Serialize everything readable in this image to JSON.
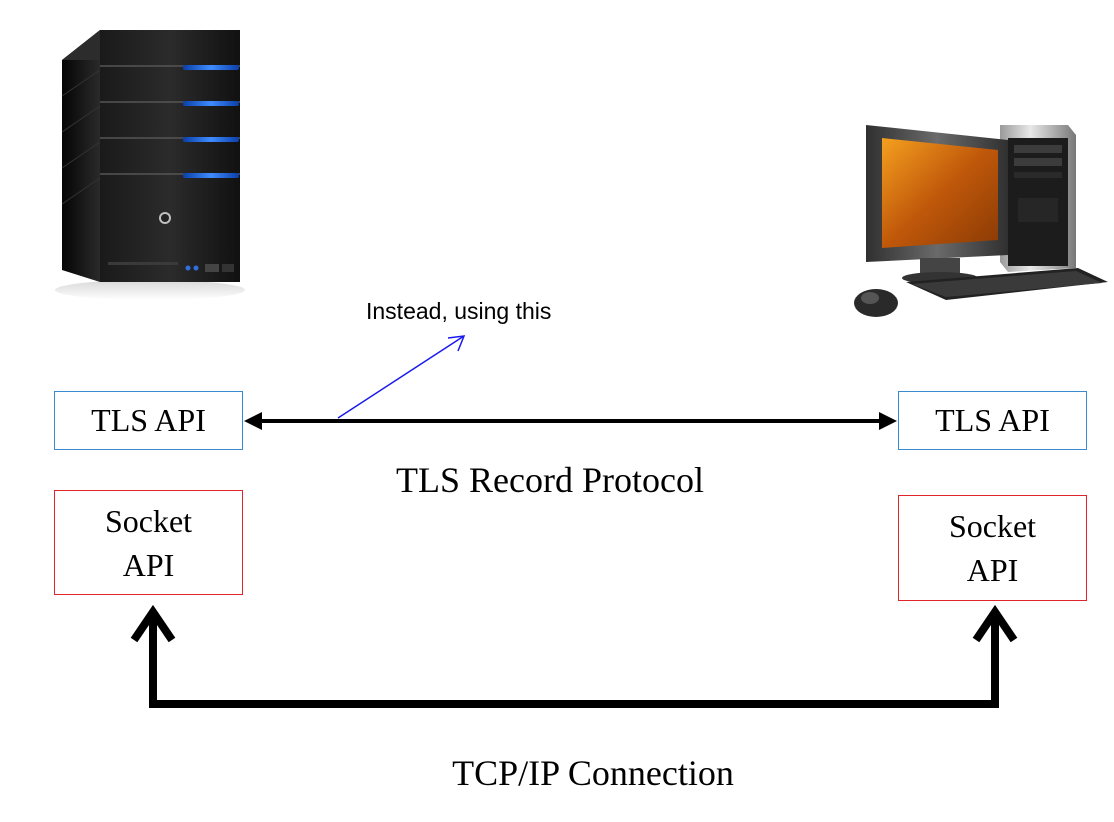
{
  "diagram": {
    "left_tls_label": "TLS API",
    "right_tls_label": "TLS API",
    "left_socket_label_line1": "Socket",
    "left_socket_label_line2": "API",
    "right_socket_label_line1": "Socket",
    "right_socket_label_line2": "API",
    "tls_record_caption": "TLS Record Protocol",
    "tcp_caption": "TCP/IP Connection",
    "annotation": "Instead, using this",
    "colors": {
      "tls_border": "#3a8ad0",
      "socket_border": "#e0242a",
      "annotation_arrow": "#1a1af0",
      "connection": "#000000"
    },
    "icons": [
      "server-icon",
      "desktop-computer-icon"
    ]
  }
}
